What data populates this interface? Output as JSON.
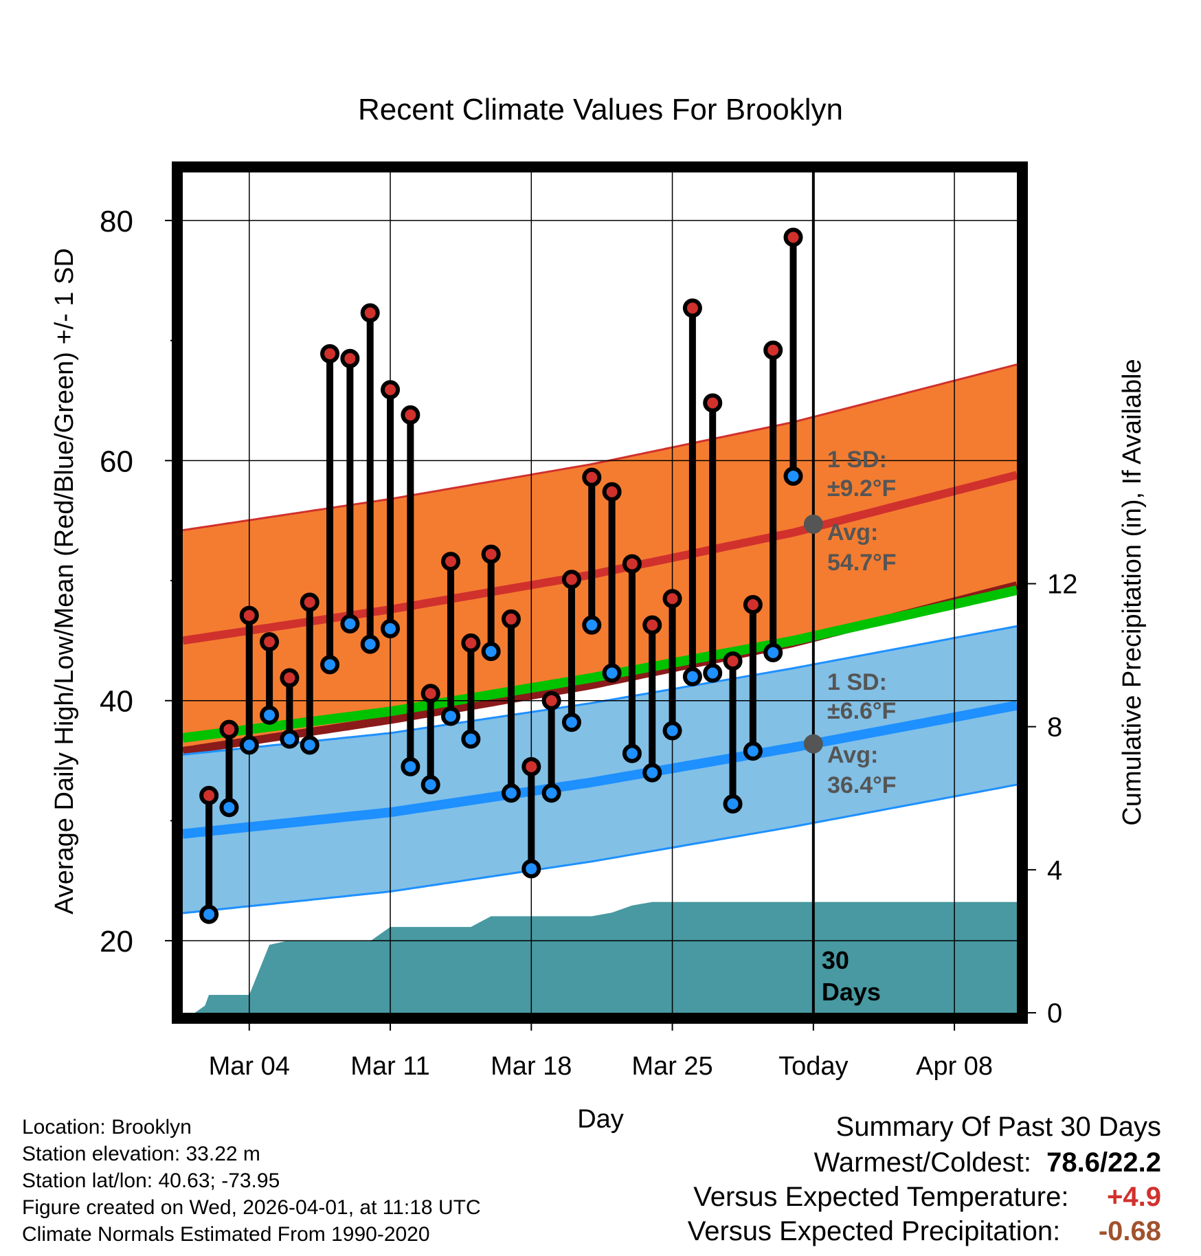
{
  "chart_data": {
    "type": "line",
    "title": "Recent Climate Values For Brooklyn",
    "xlabel": "Day",
    "ylabel": "Average Daily High/Low/Mean (Red/Blue/Green) +/- 1 SD",
    "ylabel_right": "Cumulative Precipitation (in), If Available",
    "ylim": [
      14,
      84
    ],
    "ylim_right": [
      0,
      23.5
    ],
    "xlim": [
      -0.3,
      41.1
    ],
    "yticks": [
      20,
      40,
      60,
      80
    ],
    "yticks_right": [
      0,
      4,
      8,
      12
    ],
    "xticks": [
      {
        "day": 3,
        "label": "Mar 04"
      },
      {
        "day": 10,
        "label": "Mar 11"
      },
      {
        "day": 17,
        "label": "Mar 18"
      },
      {
        "day": 24,
        "label": "Mar 25"
      },
      {
        "day": 31,
        "label": "Today"
      },
      {
        "day": 38,
        "label": "Apr 08"
      }
    ],
    "today_day": 31,
    "today_label": "30 Days",
    "daily": {
      "days": [
        1,
        2,
        3,
        4,
        5,
        6,
        7,
        8,
        9,
        10,
        11,
        12,
        13,
        14,
        15,
        16,
        17,
        18,
        19,
        20,
        21,
        22,
        23,
        24,
        25,
        26,
        27,
        28,
        29,
        30
      ],
      "high": [
        32.1,
        37.6,
        47.1,
        44.9,
        41.9,
        48.2,
        68.9,
        68.5,
        72.3,
        65.9,
        63.8,
        40.6,
        51.6,
        44.8,
        52.2,
        46.8,
        34.5,
        40.0,
        50.1,
        58.6,
        57.4,
        51.4,
        46.3,
        48.5,
        72.7,
        64.8,
        43.3,
        48.0,
        69.2,
        78.6
      ],
      "low": [
        22.2,
        31.1,
        36.3,
        38.8,
        36.8,
        36.3,
        43.0,
        46.4,
        44.7,
        46.0,
        34.5,
        33.0,
        38.7,
        36.8,
        44.1,
        32.3,
        26.0,
        32.3,
        38.2,
        46.3,
        42.3,
        35.6,
        34.0,
        37.5,
        42.0,
        42.3,
        31.4,
        35.8,
        44.0,
        58.7
      ]
    },
    "normals": {
      "days": [
        -0.3,
        10,
        20,
        30,
        41.1
      ],
      "high_mean": [
        45.0,
        47.6,
        50.5,
        54.0,
        58.8
      ],
      "low_mean": [
        28.9,
        30.7,
        33.2,
        36.1,
        39.6
      ],
      "mean": [
        36.9,
        39.1,
        41.9,
        45.0,
        49.2
      ],
      "high_sd": 9.2,
      "low_sd": 6.6
    },
    "precip": {
      "days": [
        0.3,
        0.8,
        1.0,
        2.0,
        3.0,
        4.0,
        4.8,
        6.0,
        9.0,
        10.0,
        11.0,
        14.0,
        15.0,
        16.0,
        20.0,
        21.0,
        22.0,
        23.0,
        41.1
      ],
      "values": [
        0,
        0.2,
        0.5,
        0.5,
        0.5,
        1.9,
        2.0,
        2.0,
        2.0,
        2.4,
        2.4,
        2.4,
        2.7,
        2.7,
        2.7,
        2.8,
        3.0,
        3.1,
        3.1
      ]
    },
    "annotations": {
      "high_sd_label": "1 SD:",
      "high_sd_value": "±9.2°F",
      "high_avg_label": "Avg:",
      "high_avg_value": "54.7°F",
      "high_avg": 54.7,
      "low_sd_label": "1 SD:",
      "low_sd_value": "±6.6°F",
      "low_avg_label": "Avg:",
      "low_avg_value": "36.4°F",
      "low_avg": 36.4
    },
    "colors": {
      "high_band": "#f47c30",
      "high_line": "#d0312d",
      "low_band": "#82c0e6",
      "low_line": "#1e90ff",
      "mean_line": "#00c200",
      "precip": "#4899a1",
      "annotation": "#555555",
      "high_dot": "#d0312d",
      "low_dot": "#1e90ff",
      "dark_red": "#8b1a1a"
    }
  },
  "info": {
    "location": "Location: Brooklyn",
    "elevation": "Station elevation: 33.22 m",
    "latlon": "Station lat/lon: 40.63; -73.95",
    "created": "Figure created on Wed, 2026-04-01, at 11:18 UTC",
    "normals": "Climate Normals Estimated From 1990-2020"
  },
  "summary": {
    "title": "Summary Of Past 30 Days",
    "warm_cold_label": "Warmest/Coldest:",
    "warm_cold_value": "78.6/22.2",
    "temp_label": "Versus Expected Temperature:",
    "temp_value": "+4.9",
    "temp_color": "#d0312d",
    "precip_label": "Versus Expected Precipitation:",
    "precip_value": "-0.68",
    "precip_color": "#a0522d"
  }
}
